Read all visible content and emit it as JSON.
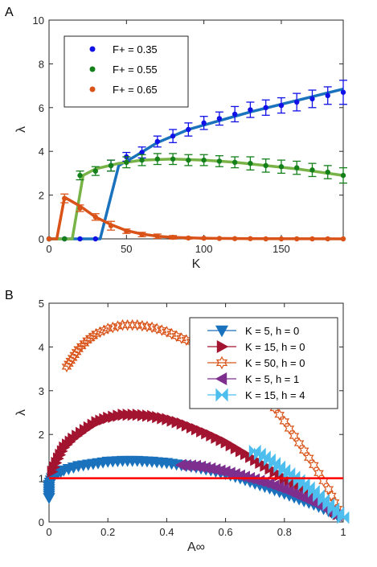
{
  "chart_data": [
    {
      "panel_label": "A",
      "type": "line",
      "xlabel": "K",
      "ylabel": "λ",
      "xlim": [
        0,
        190
      ],
      "ylim": [
        0,
        10
      ],
      "xticks": [
        0,
        50,
        100,
        150
      ],
      "yticks": [
        0,
        2,
        4,
        6,
        8,
        10
      ],
      "legend_position": "top-left",
      "series": [
        {
          "name": "F+ = 0.35",
          "marker": "dot",
          "marker_color": "#1010e8",
          "line_color": "#1a72bd",
          "curve": [
            [
              0,
              0
            ],
            [
              33,
              0
            ],
            [
              45,
              3.35
            ],
            [
              55,
              3.75
            ],
            [
              70,
              4.4
            ],
            [
              90,
              5.0
            ],
            [
              110,
              5.4
            ],
            [
              130,
              5.8
            ],
            [
              150,
              6.15
            ],
            [
              170,
              6.5
            ],
            [
              190,
              6.85
            ]
          ],
          "points": [
            {
              "x": 0,
              "y": 0,
              "err": 0
            },
            {
              "x": 10,
              "y": 0,
              "err": 0
            },
            {
              "x": 20,
              "y": 0,
              "err": 0
            },
            {
              "x": 30,
              "y": 0,
              "err": 0
            },
            {
              "x": 40,
              "y": 3.35,
              "err": 0.25
            },
            {
              "x": 50,
              "y": 3.75,
              "err": 0.2
            },
            {
              "x": 60,
              "y": 3.95,
              "err": 0.25
            },
            {
              "x": 70,
              "y": 4.45,
              "err": 0.25
            },
            {
              "x": 80,
              "y": 4.7,
              "err": 0.3
            },
            {
              "x": 90,
              "y": 5.0,
              "err": 0.3
            },
            {
              "x": 100,
              "y": 5.3,
              "err": 0.3
            },
            {
              "x": 110,
              "y": 5.5,
              "err": 0.3
            },
            {
              "x": 120,
              "y": 5.7,
              "err": 0.35
            },
            {
              "x": 130,
              "y": 5.9,
              "err": 0.35
            },
            {
              "x": 140,
              "y": 6.0,
              "err": 0.35
            },
            {
              "x": 150,
              "y": 6.1,
              "err": 0.35
            },
            {
              "x": 160,
              "y": 6.25,
              "err": 0.4
            },
            {
              "x": 170,
              "y": 6.4,
              "err": 0.4
            },
            {
              "x": 180,
              "y": 6.55,
              "err": 0.4
            },
            {
              "x": 190,
              "y": 6.7,
              "err": 0.55
            }
          ]
        },
        {
          "name": "F+ = 0.55",
          "marker": "dot",
          "marker_color": "#14801a",
          "line_color": "#77b347",
          "curve": [
            [
              0,
              0
            ],
            [
              15,
              0
            ],
            [
              22,
              2.9
            ],
            [
              30,
              3.2
            ],
            [
              45,
              3.45
            ],
            [
              60,
              3.6
            ],
            [
              80,
              3.65
            ],
            [
              100,
              3.6
            ],
            [
              120,
              3.5
            ],
            [
              140,
              3.35
            ],
            [
              160,
              3.2
            ],
            [
              190,
              2.9
            ]
          ],
          "points": [
            {
              "x": 0,
              "y": 0,
              "err": 0
            },
            {
              "x": 10,
              "y": 0,
              "err": 0
            },
            {
              "x": 20,
              "y": 2.9,
              "err": 0.2
            },
            {
              "x": 30,
              "y": 3.1,
              "err": 0.2
            },
            {
              "x": 40,
              "y": 3.35,
              "err": 0.25
            },
            {
              "x": 50,
              "y": 3.5,
              "err": 0.25
            },
            {
              "x": 60,
              "y": 3.6,
              "err": 0.25
            },
            {
              "x": 70,
              "y": 3.65,
              "err": 0.25
            },
            {
              "x": 80,
              "y": 3.65,
              "err": 0.25
            },
            {
              "x": 90,
              "y": 3.6,
              "err": 0.25
            },
            {
              "x": 100,
              "y": 3.6,
              "err": 0.25
            },
            {
              "x": 110,
              "y": 3.55,
              "err": 0.25
            },
            {
              "x": 120,
              "y": 3.5,
              "err": 0.25
            },
            {
              "x": 130,
              "y": 3.45,
              "err": 0.3
            },
            {
              "x": 140,
              "y": 3.35,
              "err": 0.3
            },
            {
              "x": 150,
              "y": 3.3,
              "err": 0.3
            },
            {
              "x": 160,
              "y": 3.25,
              "err": 0.3
            },
            {
              "x": 170,
              "y": 3.15,
              "err": 0.3
            },
            {
              "x": 180,
              "y": 3.05,
              "err": 0.3
            },
            {
              "x": 190,
              "y": 2.9,
              "err": 0.35
            }
          ]
        },
        {
          "name": "F+ = 0.65",
          "marker": "dot",
          "marker_color": "#d95319",
          "line_color": "#d95319",
          "curve": [
            [
              0,
              0
            ],
            [
              5,
              0
            ],
            [
              10,
              1.9
            ],
            [
              20,
              1.5
            ],
            [
              30,
              1.0
            ],
            [
              40,
              0.65
            ],
            [
              50,
              0.38
            ],
            [
              60,
              0.22
            ],
            [
              70,
              0.12
            ],
            [
              80,
              0.07
            ],
            [
              100,
              0.03
            ],
            [
              130,
              0.01
            ],
            [
              190,
              0
            ]
          ],
          "points": [
            {
              "x": 0,
              "y": 0,
              "err": 0
            },
            {
              "x": 10,
              "y": 1.85,
              "err": 0.2
            },
            {
              "x": 20,
              "y": 1.4,
              "err": 0.15
            },
            {
              "x": 30,
              "y": 1.0,
              "err": 0.15
            },
            {
              "x": 40,
              "y": 0.6,
              "err": 0.2
            },
            {
              "x": 50,
              "y": 0.35,
              "err": 0.1
            },
            {
              "x": 60,
              "y": 0.2,
              "err": 0.1
            },
            {
              "x": 70,
              "y": 0.12,
              "err": 0.1
            },
            {
              "x": 80,
              "y": 0.07,
              "err": 0.08
            },
            {
              "x": 90,
              "y": 0.04,
              "err": 0.05
            },
            {
              "x": 100,
              "y": 0.03,
              "err": 0.04
            },
            {
              "x": 110,
              "y": 0.02,
              "err": 0.03
            },
            {
              "x": 120,
              "y": 0.01,
              "err": 0.02
            },
            {
              "x": 130,
              "y": 0.01,
              "err": 0
            },
            {
              "x": 140,
              "y": 0,
              "err": 0
            },
            {
              "x": 150,
              "y": 0,
              "err": 0
            },
            {
              "x": 160,
              "y": 0,
              "err": 0
            },
            {
              "x": 170,
              "y": 0,
              "err": 0
            },
            {
              "x": 180,
              "y": 0,
              "err": 0
            },
            {
              "x": 190,
              "y": 0,
              "err": 0
            }
          ]
        }
      ]
    },
    {
      "panel_label": "B",
      "type": "scatter",
      "xlabel": "A∞",
      "ylabel": "λ",
      "xlim": [
        0,
        1
      ],
      "ylim": [
        0,
        5
      ],
      "xticks": [
        0,
        0.2,
        0.4,
        0.6,
        0.8,
        1
      ],
      "yticks": [
        0,
        1,
        2,
        3,
        4,
        5
      ],
      "legend_position": "top-right",
      "reference_line": {
        "y": 1,
        "color": "#ff0000"
      },
      "series": [
        {
          "name": "K = 5, h = 0",
          "marker": "triangle-down",
          "color": "#1a72bd",
          "points": [
            [
              0.0,
              0.55
            ],
            [
              0.0,
              0.7
            ],
            [
              0.0,
              0.85
            ],
            [
              0.01,
              1.0
            ],
            [
              0.02,
              1.08
            ],
            [
              0.05,
              1.18
            ],
            [
              0.1,
              1.28
            ],
            [
              0.15,
              1.33
            ],
            [
              0.2,
              1.38
            ],
            [
              0.25,
              1.4
            ],
            [
              0.3,
              1.4
            ],
            [
              0.35,
              1.38
            ],
            [
              0.4,
              1.35
            ],
            [
              0.45,
              1.3
            ],
            [
              0.5,
              1.25
            ],
            [
              0.55,
              1.18
            ],
            [
              0.6,
              1.1
            ],
            [
              0.65,
              1.0
            ],
            [
              0.7,
              0.88
            ],
            [
              0.75,
              0.77
            ],
            [
              0.8,
              0.65
            ],
            [
              0.85,
              0.52
            ],
            [
              0.9,
              0.4
            ],
            [
              0.95,
              0.25
            ],
            [
              0.98,
              0.15
            ]
          ]
        },
        {
          "name": "K = 15, h = 0",
          "marker": "triangle-right",
          "color": "#a2142f",
          "points": [
            [
              0.01,
              1.15
            ],
            [
              0.03,
              1.45
            ],
            [
              0.05,
              1.7
            ],
            [
              0.08,
              1.9
            ],
            [
              0.12,
              2.1
            ],
            [
              0.16,
              2.28
            ],
            [
              0.2,
              2.38
            ],
            [
              0.25,
              2.45
            ],
            [
              0.3,
              2.45
            ],
            [
              0.35,
              2.42
            ],
            [
              0.4,
              2.35
            ],
            [
              0.45,
              2.25
            ],
            [
              0.5,
              2.12
            ],
            [
              0.55,
              1.98
            ],
            [
              0.6,
              1.82
            ],
            [
              0.65,
              1.62
            ],
            [
              0.7,
              1.42
            ],
            [
              0.75,
              1.22
            ],
            [
              0.8,
              1.0
            ],
            [
              0.85,
              0.8
            ],
            [
              0.9,
              0.6
            ],
            [
              0.95,
              0.38
            ],
            [
              0.98,
              0.18
            ]
          ]
        },
        {
          "name": "K = 50, h = 0",
          "marker": "hexagram",
          "color": "#d95319",
          "points": [
            [
              0.06,
              3.55
            ],
            [
              0.08,
              3.75
            ],
            [
              0.1,
              3.95
            ],
            [
              0.13,
              4.15
            ],
            [
              0.16,
              4.3
            ],
            [
              0.2,
              4.42
            ],
            [
              0.25,
              4.5
            ],
            [
              0.3,
              4.5
            ],
            [
              0.35,
              4.45
            ],
            [
              0.4,
              4.35
            ],
            [
              0.45,
              4.2
            ],
            [
              0.5,
              4.08
            ],
            [
              0.55,
              3.95
            ],
            [
              0.6,
              3.75
            ],
            [
              0.65,
              3.55
            ],
            [
              0.7,
              3.2
            ],
            [
              0.75,
              2.75
            ],
            [
              0.8,
              2.3
            ],
            [
              0.85,
              1.8
            ],
            [
              0.9,
              1.3
            ],
            [
              0.95,
              0.75
            ],
            [
              0.98,
              0.3
            ]
          ]
        },
        {
          "name": "K = 5, h = 1",
          "marker": "triangle-left",
          "color": "#7e2f8e",
          "points": [
            [
              0.45,
              1.3
            ],
            [
              0.5,
              1.28
            ],
            [
              0.55,
              1.22
            ],
            [
              0.6,
              1.15
            ],
            [
              0.65,
              1.06
            ],
            [
              0.7,
              0.97
            ],
            [
              0.75,
              0.87
            ],
            [
              0.8,
              0.75
            ],
            [
              0.85,
              0.6
            ],
            [
              0.9,
              0.45
            ],
            [
              0.95,
              0.28
            ],
            [
              0.98,
              0.15
            ]
          ]
        },
        {
          "name": "K = 15, h = 4",
          "marker": "bowtie",
          "color": "#4dbeee",
          "points": [
            [
              0.7,
              1.62
            ],
            [
              0.75,
              1.42
            ],
            [
              0.8,
              1.18
            ],
            [
              0.85,
              0.95
            ],
            [
              0.9,
              0.7
            ],
            [
              0.95,
              0.4
            ],
            [
              1.0,
              0.1
            ]
          ]
        }
      ]
    }
  ]
}
